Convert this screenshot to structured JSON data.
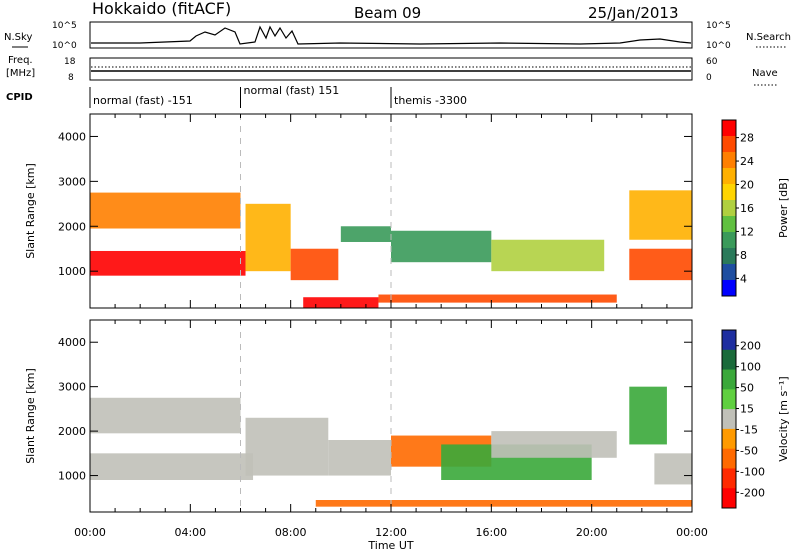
{
  "header": {
    "station": "Hokkaido (fitACF)",
    "beam": "Beam 09",
    "date": "25/Jan/2013"
  },
  "noise_panel": {
    "left_label": "N.Sky",
    "right_label": "N.Search",
    "left_ticks": [
      "10^5",
      "10^0"
    ],
    "right_ticks": [
      "10^5",
      "10^0"
    ]
  },
  "freq_panel": {
    "left_label_line1": "Freq.",
    "left_label_line2": "[MHz]",
    "left_ticks": [
      "18",
      "8"
    ],
    "right_label": "Nave",
    "right_ticks": [
      "60",
      "0"
    ]
  },
  "cpid": {
    "label": "CPID",
    "segments": [
      {
        "start_hour": 0,
        "end_hour": 6,
        "text": "normal (fast) -151"
      },
      {
        "start_hour": 6,
        "end_hour": 12,
        "text": "normal (fast) 151"
      },
      {
        "start_hour": 12,
        "end_hour": 24,
        "text": "themis -3300"
      }
    ]
  },
  "x_axis": {
    "label": "Time UT",
    "ticks": [
      "00:00",
      "04:00",
      "08:00",
      "12:00",
      "16:00",
      "20:00",
      "00:00"
    ]
  },
  "chart_data": [
    {
      "type": "heatmap",
      "title": "Power",
      "xlabel": "Time UT",
      "ylabel": "Slant Range [km]",
      "xlim": [
        0,
        24
      ],
      "ylim": [
        180,
        4500
      ],
      "yticks": [
        "1000",
        "2000",
        "3000",
        "4000"
      ],
      "colorbar": {
        "label": "Power [dB]",
        "ticks": [
          "28",
          "24",
          "20",
          "16",
          "12",
          "8",
          "4"
        ],
        "colors": [
          "#ff0000",
          "#ff4a00",
          "#ff7f00",
          "#ffb000",
          "#ffd400",
          "#b0d040",
          "#60c040",
          "#3a9a5a",
          "#2a7a5a",
          "#1e4ea0",
          "#0000ff"
        ]
      },
      "regions": [
        {
          "x": [
            0.0,
            6.2
          ],
          "y": [
            900,
            1450
          ],
          "value": 30
        },
        {
          "x": [
            0.0,
            6.0
          ],
          "y": [
            1950,
            2750
          ],
          "value": 22
        },
        {
          "x": [
            6.2,
            8.0
          ],
          "y": [
            1000,
            2500
          ],
          "value": 18
        },
        {
          "x": [
            8.0,
            9.9
          ],
          "y": [
            800,
            1500
          ],
          "value": 26
        },
        {
          "x": [
            8.5,
            11.5
          ],
          "y": [
            180,
            420
          ],
          "value": 30
        },
        {
          "x": [
            10.0,
            12.0
          ],
          "y": [
            1650,
            2000
          ],
          "value": 14
        },
        {
          "x": [
            11.5,
            21.0
          ],
          "y": [
            300,
            480
          ],
          "value": 26
        },
        {
          "x": [
            12.0,
            16.0
          ],
          "y": [
            1200,
            1900
          ],
          "value": 14
        },
        {
          "x": [
            16.0,
            20.5
          ],
          "y": [
            1000,
            1700
          ],
          "value": 16
        },
        {
          "x": [
            21.5,
            24.0
          ],
          "y": [
            800,
            1500
          ],
          "value": 28
        },
        {
          "x": [
            21.5,
            24.0
          ],
          "y": [
            1700,
            2800
          ],
          "value": 20
        }
      ]
    },
    {
      "type": "heatmap",
      "title": "Velocity",
      "xlabel": "Time UT",
      "ylabel": "Slant Range [km]",
      "xlim": [
        0,
        24
      ],
      "ylim": [
        180,
        4500
      ],
      "yticks": [
        "1000",
        "2000",
        "3000",
        "4000"
      ],
      "colorbar": {
        "label": "Velocity [m s⁻¹]",
        "ticks": [
          "200",
          "100",
          "50",
          "15",
          "-15",
          "-50",
          "-100",
          "-200"
        ],
        "colors": [
          "#1e2ea0",
          "#1a6a3a",
          "#3aa83a",
          "#60d040",
          "#c0c0b8",
          "#ff9a00",
          "#ff6a00",
          "#ff2a00",
          "#ff0000"
        ]
      },
      "regions": [
        {
          "x": [
            0.0,
            6.5
          ],
          "y": [
            900,
            1500
          ],
          "value": 0
        },
        {
          "x": [
            0.0,
            6.0
          ],
          "y": [
            1950,
            2750
          ],
          "value": 0
        },
        {
          "x": [
            6.2,
            9.5
          ],
          "y": [
            1000,
            2300
          ],
          "value": 0
        },
        {
          "x": [
            9.5,
            12.0
          ],
          "y": [
            1000,
            1800
          ],
          "value": 0
        },
        {
          "x": [
            9.0,
            24.0
          ],
          "y": [
            300,
            450
          ],
          "value": -60
        },
        {
          "x": [
            12.0,
            16.0
          ],
          "y": [
            1200,
            1900
          ],
          "value": -50
        },
        {
          "x": [
            14.0,
            20.0
          ],
          "y": [
            900,
            1700
          ],
          "value": 30
        },
        {
          "x": [
            16.0,
            21.0
          ],
          "y": [
            1400,
            2000
          ],
          "value": 0
        },
        {
          "x": [
            21.5,
            23.0
          ],
          "y": [
            1700,
            3000
          ],
          "value": 40
        },
        {
          "x": [
            22.5,
            24.0
          ],
          "y": [
            800,
            1500
          ],
          "value": 0
        }
      ]
    }
  ]
}
